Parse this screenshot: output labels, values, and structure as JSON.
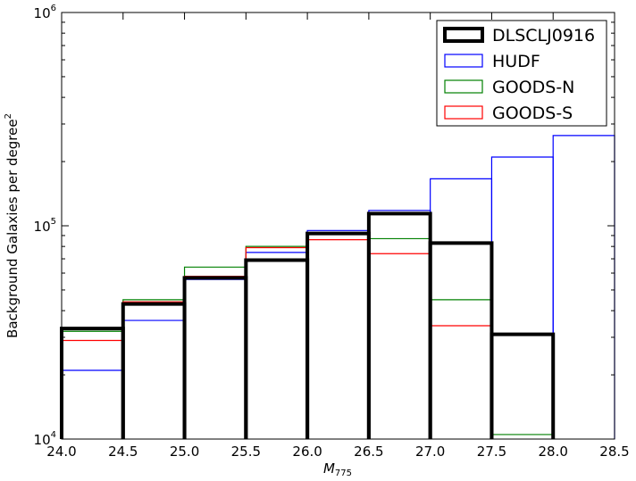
{
  "chart_data": {
    "type": "histogram",
    "xlabel": "M",
    "xlabel_sub": "775",
    "ylabel": "Background Galaxies per degree",
    "ylabel_sup": "2",
    "xlim": [
      24.0,
      28.5
    ],
    "ylim": [
      10000,
      1000000
    ],
    "yscale": "log",
    "x_ticks": [
      "24.0",
      "24.5",
      "25.0",
      "25.5",
      "26.0",
      "26.5",
      "27.0",
      "27.5",
      "28.0",
      "28.5"
    ],
    "y_ticks": [
      {
        "base": "10",
        "exp": "4",
        "value": 10000
      },
      {
        "base": "10",
        "exp": "5",
        "value": 100000
      },
      {
        "base": "10",
        "exp": "6",
        "value": 1000000
      }
    ],
    "bin_edges": [
      24.0,
      24.5,
      25.0,
      25.5,
      26.0,
      26.5,
      27.0,
      27.5,
      28.0,
      28.5
    ],
    "legend": {
      "position": "top-right"
    },
    "series": [
      {
        "name": "DLSCLJ0916",
        "color": "#000000",
        "width": "thick",
        "values": [
          33000,
          43000,
          57000,
          69000,
          92000,
          114000,
          83000,
          31000,
          null
        ]
      },
      {
        "name": "HUDF",
        "color": "#0000ff",
        "width": "thin",
        "values": [
          21000,
          36000,
          56000,
          75000,
          95000,
          118000,
          166000,
          210000,
          265000
        ]
      },
      {
        "name": "GOODS-N",
        "color": "#008000",
        "width": "thin",
        "values": [
          32000,
          45000,
          64000,
          80000,
          92000,
          87000,
          45000,
          10500,
          null
        ]
      },
      {
        "name": "GOODS-S",
        "color": "#ff0000",
        "width": "thin",
        "values": [
          29000,
          44000,
          58000,
          79000,
          86000,
          74000,
          34000,
          null,
          null
        ]
      }
    ]
  }
}
